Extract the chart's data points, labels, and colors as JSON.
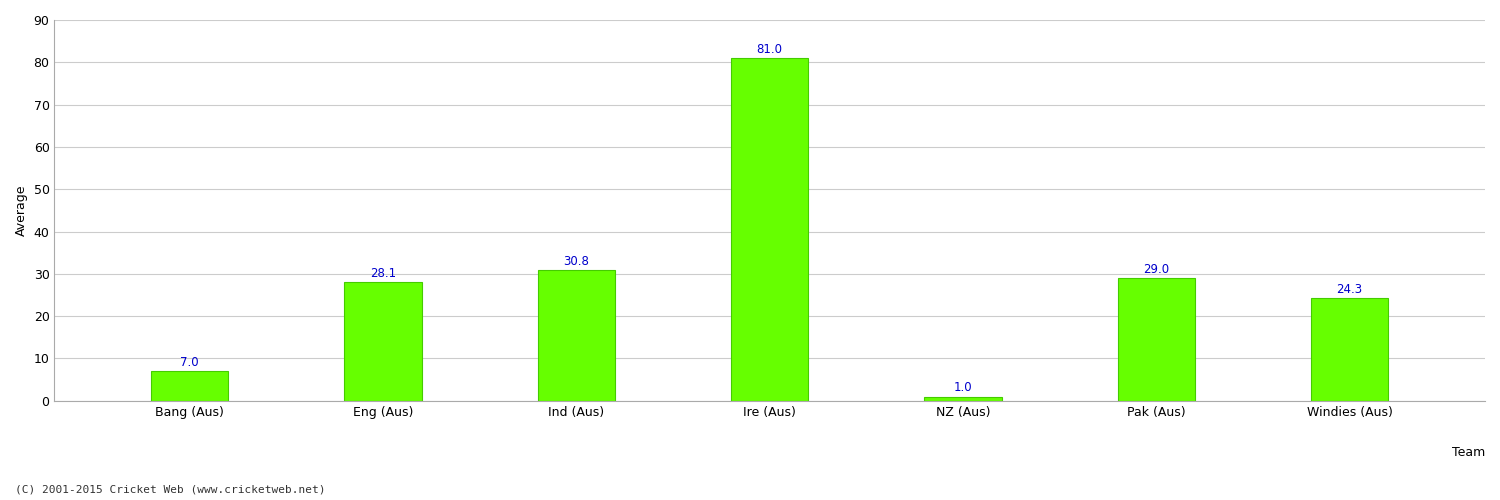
{
  "categories": [
    "Bang (Aus)",
    "Eng (Aus)",
    "Ind (Aus)",
    "Ire (Aus)",
    "NZ (Aus)",
    "Pak (Aus)",
    "Windies (Aus)"
  ],
  "values": [
    7.0,
    28.1,
    30.8,
    81.0,
    1.0,
    29.0,
    24.3
  ],
  "bar_color": "#66ff00",
  "bar_edge_color": "#44cc00",
  "label_color": "#0000cc",
  "xlabel": "Team",
  "ylabel": "Average",
  "ylim": [
    0,
    90
  ],
  "yticks": [
    0,
    10,
    20,
    30,
    40,
    50,
    60,
    70,
    80,
    90
  ],
  "grid_color": "#cccccc",
  "background_color": "#ffffff",
  "footer_text": "(C) 2001-2015 Cricket Web (www.cricketweb.net)",
  "label_fontsize": 8.5,
  "axis_label_fontsize": 9,
  "tick_fontsize": 9,
  "footer_fontsize": 8,
  "bar_width": 0.4
}
